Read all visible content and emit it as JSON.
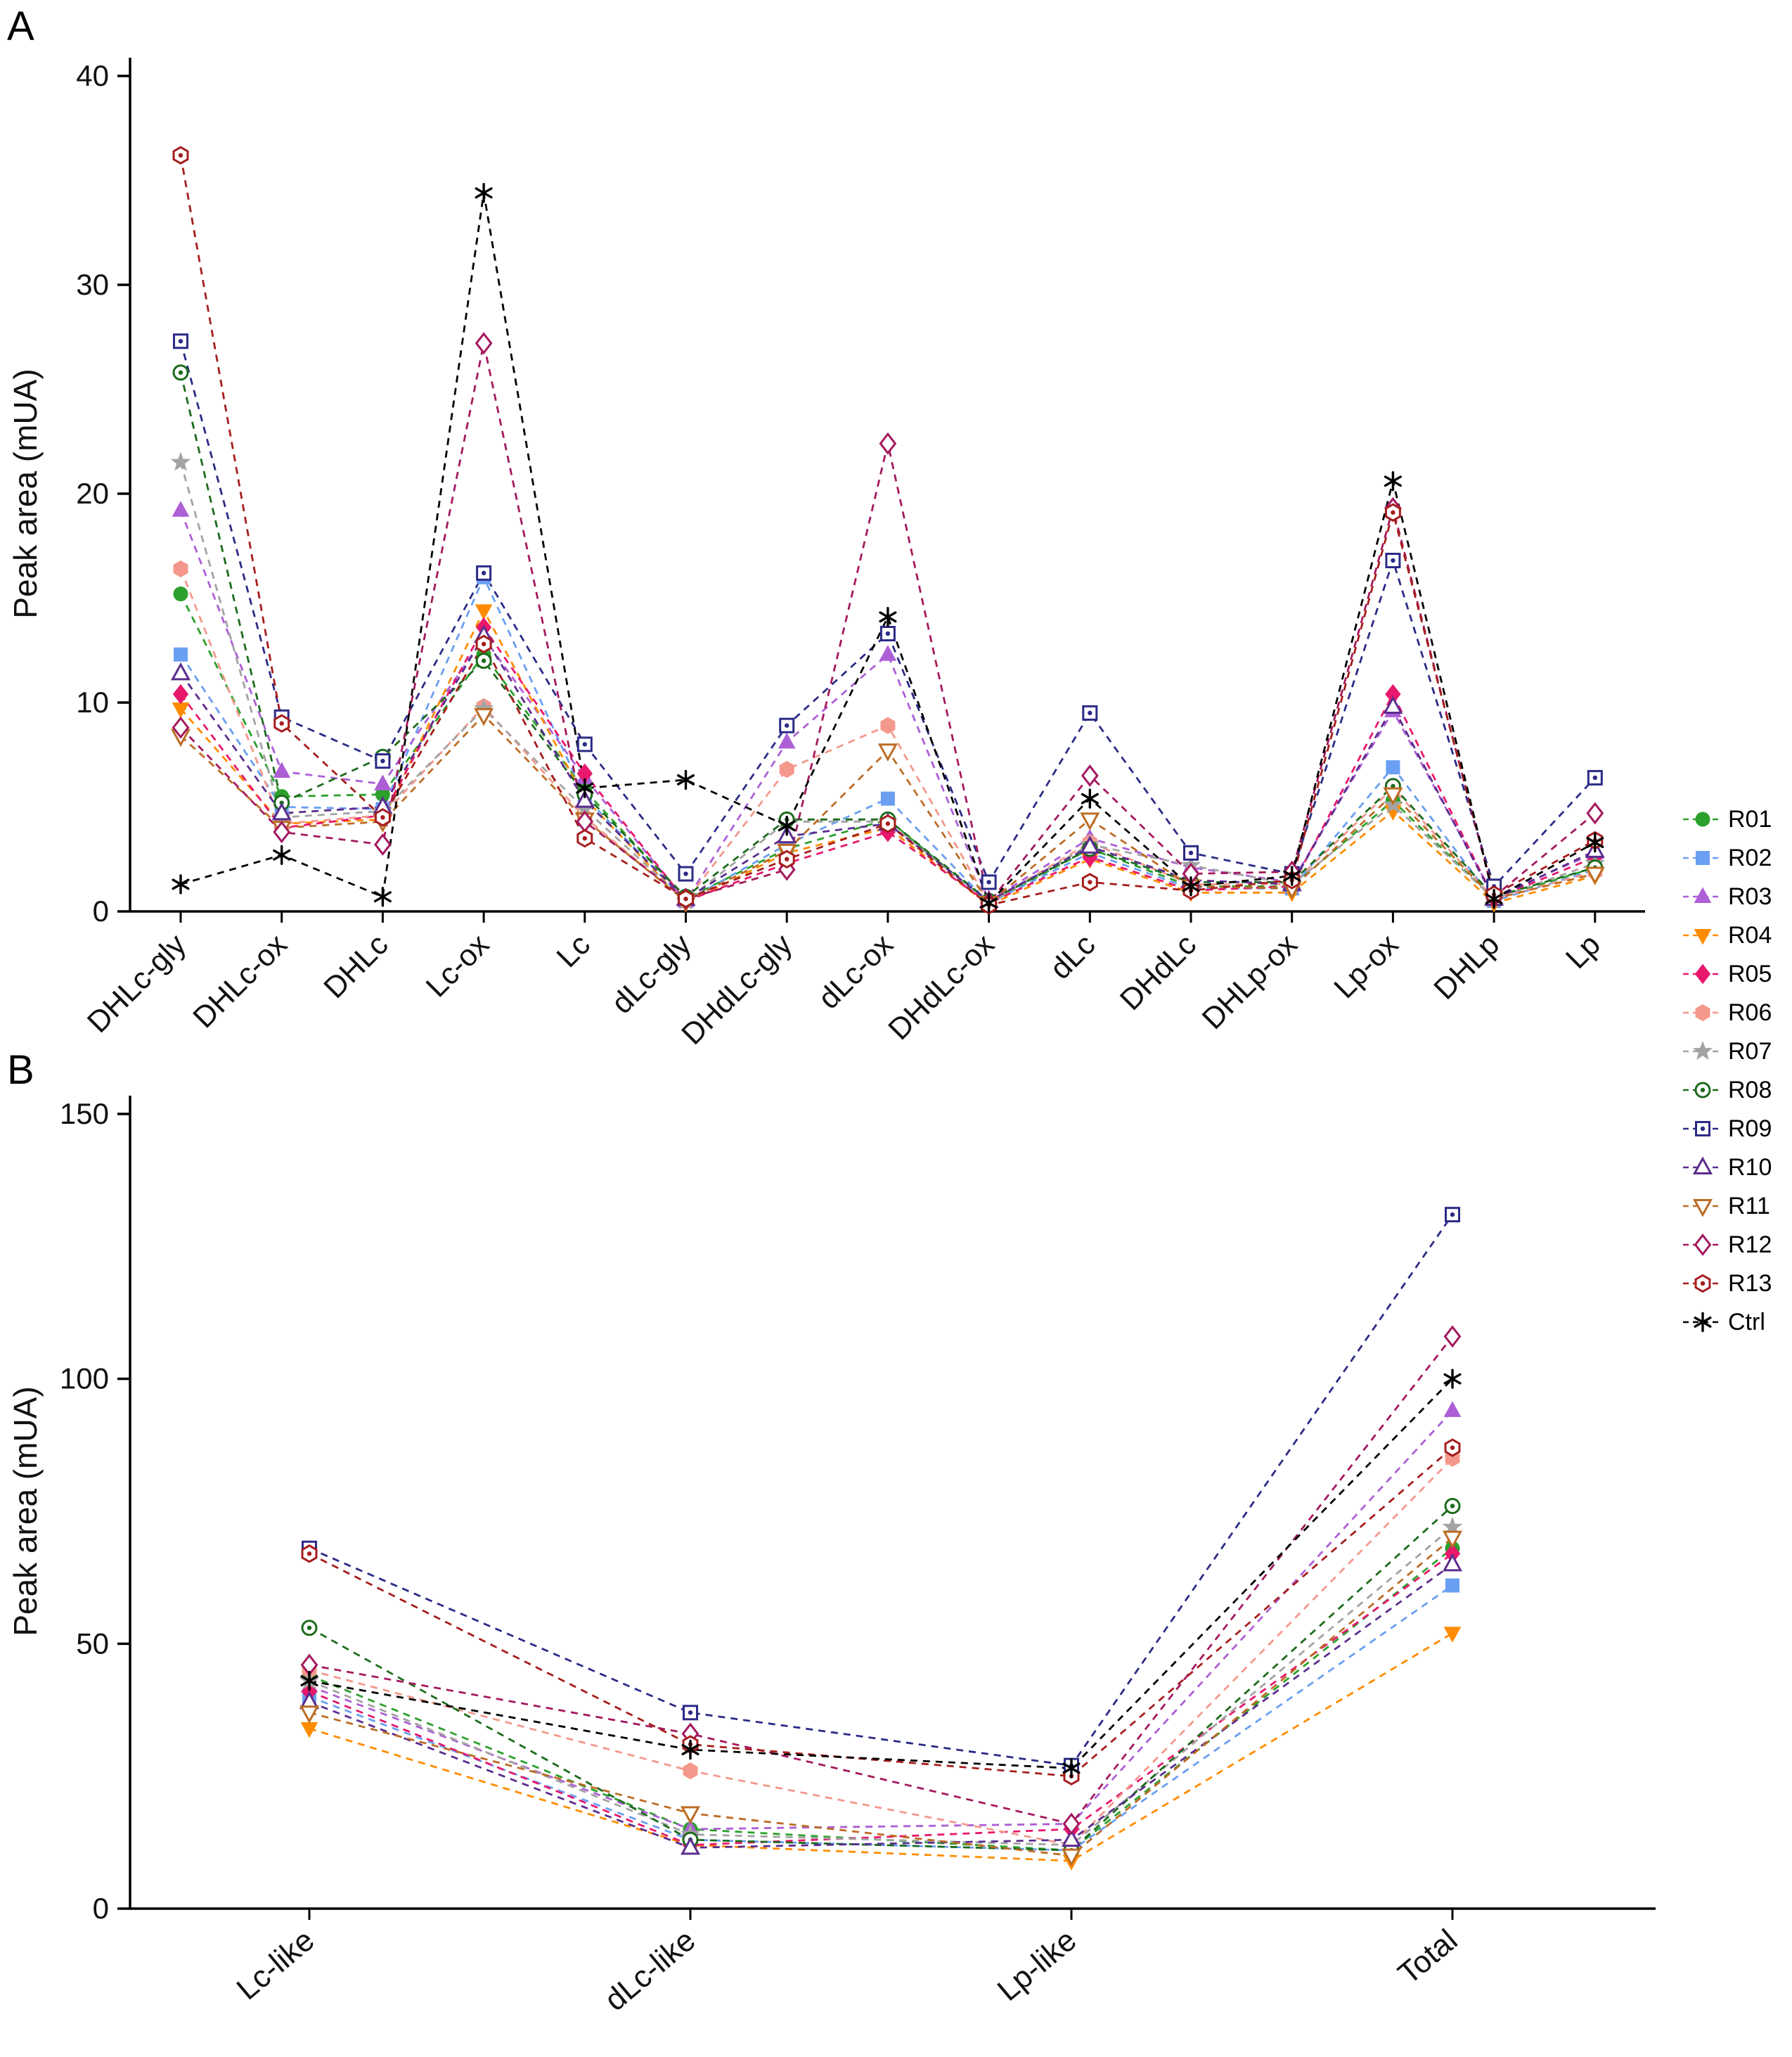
{
  "panels": {
    "a": {
      "label": "A"
    },
    "b": {
      "label": "B"
    }
  },
  "series_styles": [
    {
      "name": "R01",
      "color": "#2ca02c",
      "marker": "circle",
      "open": false,
      "dot": false
    },
    {
      "name": "R02",
      "color": "#6a9ff2",
      "marker": "square",
      "open": false,
      "dot": false
    },
    {
      "name": "R03",
      "color": "#ad5fd6",
      "marker": "triangle-up",
      "open": false,
      "dot": false
    },
    {
      "name": "R04",
      "color": "#ff8c00",
      "marker": "triangle-down",
      "open": false,
      "dot": false
    },
    {
      "name": "R05",
      "color": "#e8186d",
      "marker": "diamond",
      "open": false,
      "dot": false
    },
    {
      "name": "R06",
      "color": "#f4988c",
      "marker": "hexagon",
      "open": false,
      "dot": false
    },
    {
      "name": "R07",
      "color": "#a3a3a3",
      "marker": "star",
      "open": false,
      "dot": false
    },
    {
      "name": "R08",
      "color": "#1c6b1c",
      "marker": "circle",
      "open": true,
      "dot": true
    },
    {
      "name": "R09",
      "color": "#2b2b87",
      "marker": "square",
      "open": true,
      "dot": true
    },
    {
      "name": "R10",
      "color": "#5b2d8e",
      "marker": "triangle-up",
      "open": true,
      "dot": false
    },
    {
      "name": "R11",
      "color": "#bc6c25",
      "marker": "triangle-down",
      "open": true,
      "dot": false
    },
    {
      "name": "R12",
      "color": "#a4195e",
      "marker": "diamond",
      "open": true,
      "dot": false
    },
    {
      "name": "R13",
      "color": "#a61d1d",
      "marker": "hexagon",
      "open": true,
      "dot": true
    },
    {
      "name": "Ctrl",
      "color": "#000000",
      "marker": "asterisk",
      "open": false,
      "dot": false
    }
  ],
  "chart_data": [
    {
      "panel": "A",
      "type": "line",
      "line_style": "dashed",
      "grid": false,
      "legend_position": "right",
      "title": "",
      "xlabel": "",
      "ylabel": "Peak area (mUA)",
      "ylim": [
        0,
        40
      ],
      "yticks": [
        0,
        10,
        20,
        30,
        40
      ],
      "categories": [
        "DHLc-gly",
        "DHLc-ox",
        "DHLc",
        "Lc-ox",
        "Lc",
        "dLc-gly",
        "DHdLc-gly",
        "dLc-ox",
        "DHdLc-ox",
        "dLc",
        "DHdLc",
        "DHLp-ox",
        "Lp-ox",
        "DHLp",
        "Lp"
      ],
      "series": [
        {
          "name": "R01",
          "values": [
            15.2,
            5.5,
            5.6,
            12.3,
            5.8,
            0.6,
            3.0,
            4.4,
            0.4,
            3.0,
            1.2,
            1.2,
            5.3,
            0.6,
            2.1
          ]
        },
        {
          "name": "R02",
          "values": [
            12.3,
            5.0,
            4.9,
            16.0,
            5.5,
            0.5,
            3.2,
            5.4,
            0.4,
            2.8,
            1.1,
            1.1,
            6.9,
            0.5,
            2.0
          ]
        },
        {
          "name": "R03",
          "values": [
            19.2,
            6.7,
            6.1,
            13.1,
            6.4,
            0.5,
            8.1,
            12.3,
            0.5,
            3.5,
            2.1,
            1.4,
            9.6,
            0.7,
            2.8
          ]
        },
        {
          "name": "R04",
          "values": [
            9.7,
            4.2,
            4.4,
            14.4,
            5.4,
            0.4,
            2.8,
            4.0,
            0.3,
            2.5,
            0.9,
            0.9,
            4.8,
            0.4,
            1.7
          ]
        },
        {
          "name": "R05",
          "values": [
            10.4,
            4.0,
            4.6,
            13.6,
            6.6,
            0.5,
            2.3,
            3.8,
            0.4,
            2.6,
            1.0,
            1.2,
            10.4,
            0.6,
            2.6
          ]
        },
        {
          "name": "R06",
          "values": [
            16.4,
            4.2,
            4.6,
            9.8,
            4.5,
            0.5,
            6.8,
            8.9,
            0.4,
            3.3,
            1.3,
            1.3,
            5.9,
            0.6,
            1.9
          ]
        },
        {
          "name": "R07",
          "values": [
            21.5,
            4.5,
            4.8,
            9.7,
            4.9,
            0.5,
            4.3,
            4.3,
            0.4,
            3.2,
            2.2,
            1.3,
            5.1,
            0.6,
            2.3
          ]
        },
        {
          "name": "R08",
          "values": [
            25.8,
            5.2,
            7.4,
            12.0,
            5.6,
            0.7,
            4.4,
            4.4,
            0.5,
            3.0,
            1.4,
            1.4,
            6.0,
            0.7,
            2.1
          ]
        },
        {
          "name": "R09",
          "values": [
            27.3,
            9.3,
            7.2,
            16.2,
            8.0,
            1.8,
            8.9,
            13.3,
            1.4,
            9.5,
            2.8,
            1.8,
            16.8,
            1.2,
            6.4
          ]
        },
        {
          "name": "R10",
          "values": [
            11.4,
            4.7,
            5.0,
            13.2,
            5.3,
            0.6,
            3.6,
            4.2,
            0.5,
            3.1,
            1.5,
            1.3,
            9.8,
            0.6,
            2.9
          ]
        },
        {
          "name": "R11",
          "values": [
            8.4,
            4.0,
            4.3,
            9.4,
            4.4,
            0.5,
            2.9,
            7.7,
            0.4,
            4.4,
            1.2,
            1.1,
            5.6,
            0.6,
            1.8
          ]
        },
        {
          "name": "R12",
          "values": [
            8.8,
            3.8,
            3.2,
            27.2,
            4.3,
            0.6,
            2.0,
            22.4,
            0.4,
            6.5,
            1.8,
            1.9,
            19.3,
            0.7,
            4.7
          ]
        },
        {
          "name": "R13",
          "values": [
            36.2,
            9.0,
            4.5,
            12.8,
            3.5,
            0.6,
            2.5,
            4.2,
            0.3,
            1.4,
            1.0,
            1.5,
            19.1,
            0.8,
            3.4
          ]
        },
        {
          "name": "Ctrl",
          "values": [
            1.3,
            2.7,
            0.7,
            34.4,
            5.9,
            6.3,
            4.1,
            14.1,
            0.4,
            5.4,
            1.2,
            1.7,
            20.6,
            0.6,
            3.3
          ]
        }
      ]
    },
    {
      "panel": "B",
      "type": "line",
      "line_style": "dashed",
      "grid": false,
      "legend_position": "right",
      "title": "",
      "xlabel": "",
      "ylabel": "Peak area (mUA)",
      "ylim": [
        0,
        150
      ],
      "yticks": [
        0,
        50,
        100,
        150
      ],
      "categories": [
        "Lc-like",
        "dLc-like",
        "Lp-like",
        "Total"
      ],
      "series": [
        {
          "name": "R01",
          "values": [
            44,
            15,
            11,
            68
          ]
        },
        {
          "name": "R02",
          "values": [
            40,
            13,
            11,
            61
          ]
        },
        {
          "name": "R03",
          "values": [
            42,
            15,
            16,
            94
          ]
        },
        {
          "name": "R04",
          "values": [
            34,
            12,
            9,
            52
          ]
        },
        {
          "name": "R05",
          "values": [
            41,
            12,
            15,
            67
          ]
        },
        {
          "name": "R06",
          "values": [
            45,
            26,
            12,
            85
          ]
        },
        {
          "name": "R07",
          "values": [
            43,
            14,
            12,
            72
          ]
        },
        {
          "name": "R08",
          "values": [
            53,
            13,
            11,
            76
          ]
        },
        {
          "name": "R09",
          "values": [
            68,
            37,
            27,
            131
          ]
        },
        {
          "name": "R10",
          "values": [
            39,
            11.5,
            13,
            65
          ]
        },
        {
          "name": "R11",
          "values": [
            37,
            18,
            10,
            70
          ]
        },
        {
          "name": "R12",
          "values": [
            46,
            33,
            16,
            108
          ]
        },
        {
          "name": "R13",
          "values": [
            67,
            31,
            25,
            87
          ]
        },
        {
          "name": "Ctrl",
          "values": [
            43,
            30,
            26.5,
            100
          ]
        }
      ]
    }
  ],
  "legend": {
    "entries": [
      "R01",
      "R02",
      "R03",
      "R04",
      "R05",
      "R06",
      "R07",
      "R08",
      "R09",
      "R10",
      "R11",
      "R12",
      "R13",
      "Ctrl"
    ]
  }
}
